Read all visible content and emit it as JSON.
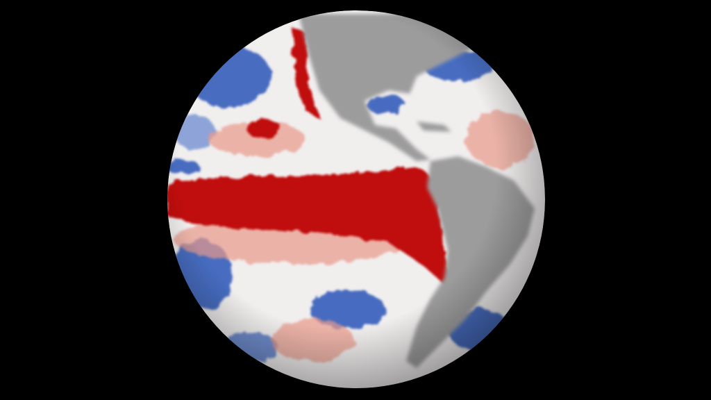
{
  "scene": {
    "subject": "globe",
    "background_color": "#000000",
    "colors": {
      "ocean_neutral": "#f1eeee",
      "warm_anomaly": "#c0100c",
      "warm_light": "#e99a8a",
      "cool_anomaly": "#2a55b8",
      "cool_light": "#9fb4de",
      "land": "#9c9c9c"
    }
  }
}
